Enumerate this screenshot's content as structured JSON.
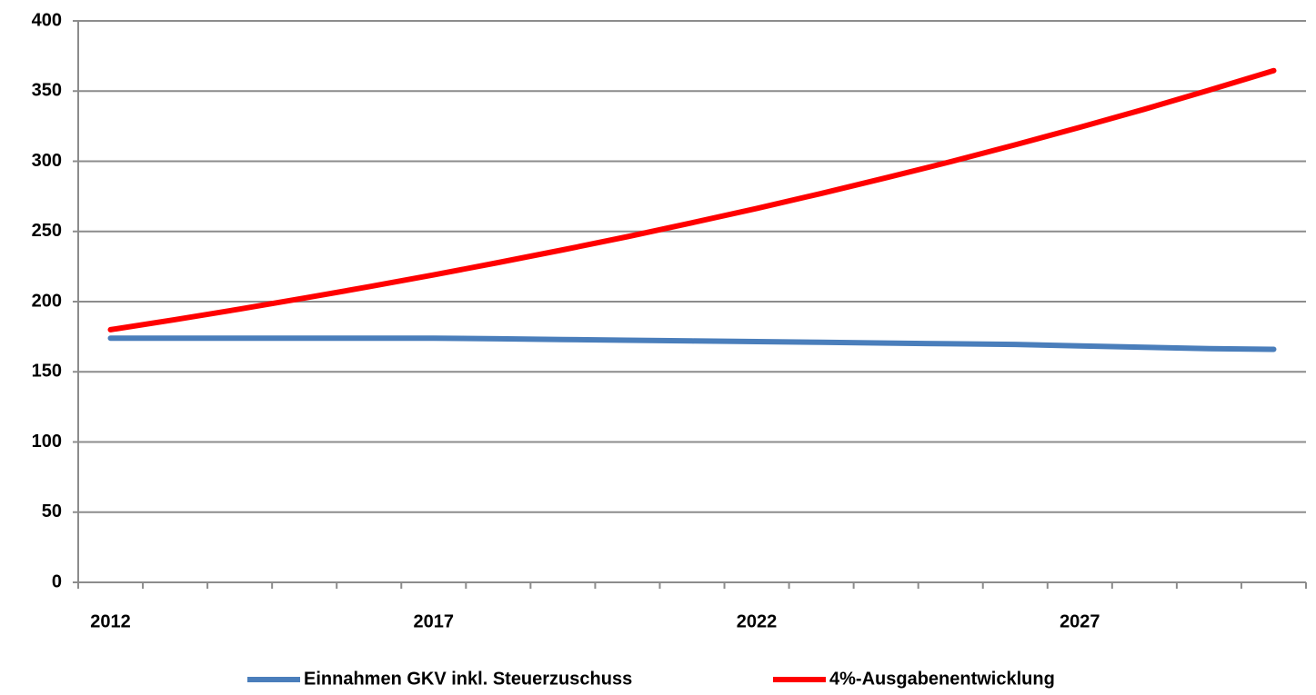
{
  "chart_data": {
    "type": "line",
    "categories": [
      "2012",
      null,
      null,
      null,
      null,
      "2017",
      null,
      null,
      null,
      null,
      "2022",
      null,
      null,
      null,
      null,
      "2027",
      null,
      null,
      null
    ],
    "series": [
      {
        "name": "Einnahmen GKV inkl. Steuerzuschuss",
        "color": "#4a7ebb",
        "values": [
          174,
          174,
          174,
          174,
          174,
          174,
          173.5,
          173,
          172.5,
          172,
          171.5,
          171,
          170.5,
          170,
          169.5,
          168.5,
          167.5,
          166.5,
          166
        ]
      },
      {
        "name": "4%-Ausgabenentwicklung",
        "color": "#ff0000",
        "values": [
          180,
          187.2,
          194.7,
          202.5,
          210.6,
          219,
          227.8,
          236.9,
          246.3,
          256.2,
          266.4,
          277.1,
          288.2,
          299.7,
          311.7,
          324.2,
          337.1,
          350.6,
          364.6
        ]
      }
    ],
    "ylim": [
      0,
      400
    ],
    "yticks": [
      0,
      50,
      100,
      150,
      200,
      250,
      300,
      350,
      400
    ],
    "grid": true,
    "legend": "bottom"
  }
}
